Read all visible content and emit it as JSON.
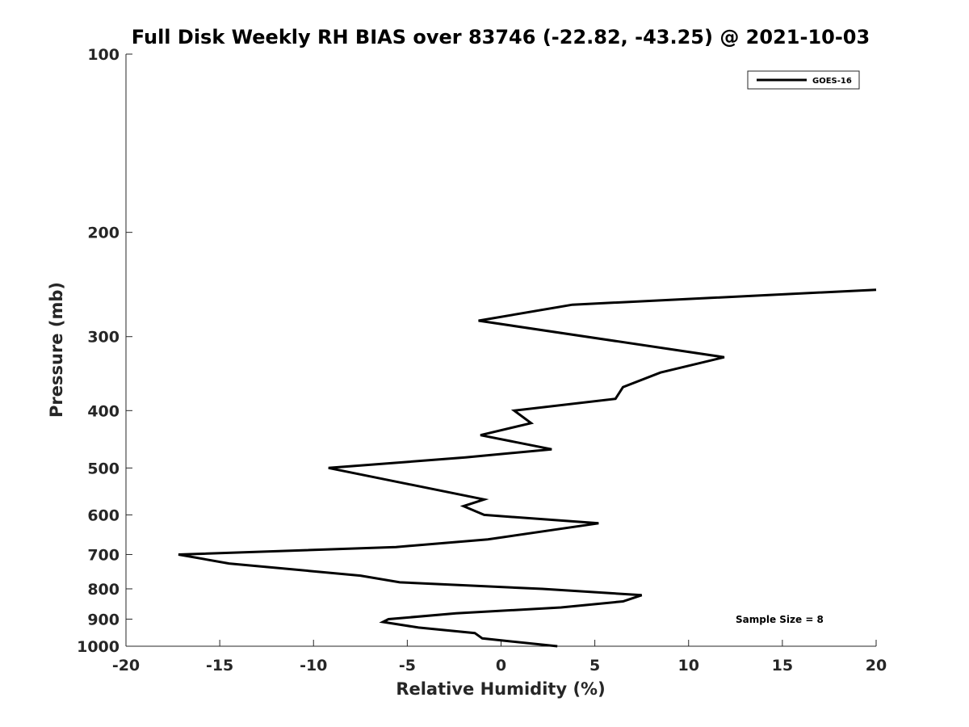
{
  "chart_data": {
    "type": "line",
    "title": "Full Disk Weekly RH BIAS over 83746 (-22.82, -43.25) @ 2021-10-03",
    "xlabel": "Relative Humidity (%)",
    "ylabel": "Pressure (mb)",
    "xlim": [
      -20,
      20
    ],
    "ylim": [
      100,
      1000
    ],
    "y_scale": "log",
    "y_reversed": true,
    "grid": false,
    "legend_position": "top-right",
    "x_ticks": [
      -20,
      -15,
      -10,
      -5,
      0,
      5,
      10,
      15,
      20
    ],
    "x_tick_labels": [
      "-20",
      "-15",
      "-10",
      "-5",
      "0",
      "5",
      "10",
      "15",
      "20"
    ],
    "y_ticks": [
      100,
      200,
      300,
      400,
      500,
      600,
      700,
      800,
      900,
      1000
    ],
    "y_tick_labels": [
      "100",
      "200",
      "300",
      "400",
      "500",
      "600",
      "700",
      "800",
      "900",
      "1000"
    ],
    "series": [
      {
        "name": "GOES-16",
        "color": "#000000",
        "points": [
          {
            "x": 20.0,
            "y": 250
          },
          {
            "x": 3.8,
            "y": 265
          },
          {
            "x": -1.2,
            "y": 282
          },
          {
            "x": 11.9,
            "y": 325
          },
          {
            "x": 8.5,
            "y": 345
          },
          {
            "x": 6.5,
            "y": 365
          },
          {
            "x": 6.1,
            "y": 382
          },
          {
            "x": 0.7,
            "y": 400
          },
          {
            "x": 1.6,
            "y": 420
          },
          {
            "x": -1.1,
            "y": 440
          },
          {
            "x": 2.7,
            "y": 465
          },
          {
            "x": -1.9,
            "y": 480
          },
          {
            "x": -9.2,
            "y": 500
          },
          {
            "x": -0.9,
            "y": 565
          },
          {
            "x": -2.0,
            "y": 580
          },
          {
            "x": -0.9,
            "y": 600
          },
          {
            "x": 5.2,
            "y": 620
          },
          {
            "x": -0.7,
            "y": 660
          },
          {
            "x": -5.6,
            "y": 680
          },
          {
            "x": -17.2,
            "y": 700
          },
          {
            "x": -14.5,
            "y": 725
          },
          {
            "x": -7.5,
            "y": 760
          },
          {
            "x": -5.4,
            "y": 780
          },
          {
            "x": 2.2,
            "y": 800
          },
          {
            "x": 7.5,
            "y": 820
          },
          {
            "x": 6.5,
            "y": 840
          },
          {
            "x": 3.2,
            "y": 860
          },
          {
            "x": -2.4,
            "y": 880
          },
          {
            "x": -6.0,
            "y": 900
          },
          {
            "x": -6.3,
            "y": 910
          },
          {
            "x": -4.4,
            "y": 930
          },
          {
            "x": -1.4,
            "y": 950
          },
          {
            "x": -1.0,
            "y": 970
          },
          {
            "x": 3.0,
            "y": 1000
          }
        ]
      }
    ],
    "annotations": [
      "Sample Size = 8"
    ]
  }
}
